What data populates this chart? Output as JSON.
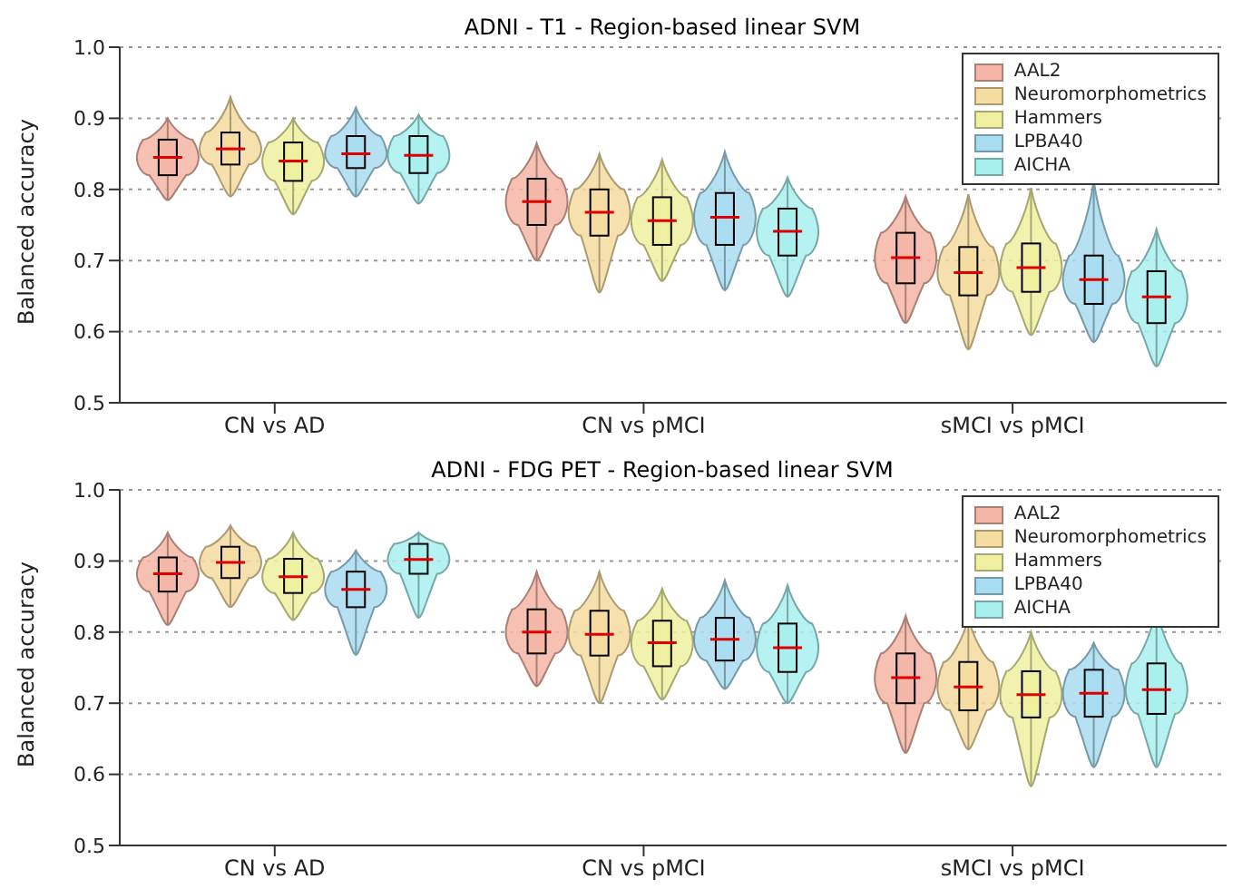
{
  "chart_data": [
    {
      "type": "box",
      "title": "ADNI - T1 - Region-based linear SVM",
      "ylabel": "Balanced accuracy",
      "categories": [
        "CN vs AD",
        "CN vs pMCI",
        "sMCI vs pMCI"
      ],
      "ylim": [
        0.5,
        1.0
      ],
      "yticks": [
        0.5,
        0.6,
        0.7,
        0.8,
        0.9,
        {
          "value": 1,
          "label": "1.0"
        }
      ],
      "grid": "y",
      "legend": "top right",
      "series": [
        {
          "name": "AAL2",
          "color": "#f4b6a6",
          "boxes": [
            {
              "low": 0.785,
              "q1": 0.82,
              "median": 0.845,
              "q3": 0.87,
              "high": 0.9
            },
            {
              "low": 0.7,
              "q1": 0.75,
              "median": 0.783,
              "q3": 0.815,
              "high": 0.865
            },
            {
              "low": 0.612,
              "q1": 0.668,
              "median": 0.704,
              "q3": 0.739,
              "high": 0.79
            }
          ]
        },
        {
          "name": "Neuromorphometrics",
          "color": "#f5dca0",
          "boxes": [
            {
              "low": 0.79,
              "q1": 0.835,
              "median": 0.857,
              "q3": 0.88,
              "high": 0.93
            },
            {
              "low": 0.655,
              "q1": 0.735,
              "median": 0.768,
              "q3": 0.8,
              "high": 0.85
            },
            {
              "low": 0.575,
              "q1": 0.651,
              "median": 0.683,
              "q3": 0.719,
              "high": 0.793
            }
          ]
        },
        {
          "name": "Hammers",
          "color": "#eef0a0",
          "boxes": [
            {
              "low": 0.765,
              "q1": 0.812,
              "median": 0.84,
              "q3": 0.866,
              "high": 0.9
            },
            {
              "low": 0.671,
              "q1": 0.722,
              "median": 0.756,
              "q3": 0.789,
              "high": 0.842
            },
            {
              "low": 0.595,
              "q1": 0.656,
              "median": 0.69,
              "q3": 0.724,
              "high": 0.802
            }
          ]
        },
        {
          "name": "LPBA40",
          "color": "#a8dcf0",
          "boxes": [
            {
              "low": 0.79,
              "q1": 0.83,
              "median": 0.85,
              "q3": 0.875,
              "high": 0.915
            },
            {
              "low": 0.658,
              "q1": 0.722,
              "median": 0.761,
              "q3": 0.795,
              "high": 0.853
            },
            {
              "low": 0.585,
              "q1": 0.639,
              "median": 0.673,
              "q3": 0.707,
              "high": 0.812
            }
          ]
        },
        {
          "name": "AICHA",
          "color": "#a8f0ee",
          "boxes": [
            {
              "low": 0.78,
              "q1": 0.823,
              "median": 0.848,
              "q3": 0.875,
              "high": 0.905
            },
            {
              "low": 0.649,
              "q1": 0.707,
              "median": 0.741,
              "q3": 0.773,
              "high": 0.817
            },
            {
              "low": 0.551,
              "q1": 0.612,
              "median": 0.649,
              "q3": 0.685,
              "high": 0.744
            }
          ]
        }
      ]
    },
    {
      "type": "box",
      "title": "ADNI - FDG PET - Region-based linear SVM",
      "ylabel": "Balanced accuracy",
      "categories": [
        "CN vs AD",
        "CN vs pMCI",
        "sMCI vs pMCI"
      ],
      "ylim": [
        0.5,
        1.0
      ],
      "yticks": [
        0.5,
        0.6,
        0.7,
        0.8,
        0.9,
        {
          "value": 1,
          "label": "1.0"
        }
      ],
      "grid": "y",
      "legend": "top right",
      "series": [
        {
          "name": "AAL2",
          "color": "#f4b6a6",
          "boxes": [
            {
              "low": 0.81,
              "q1": 0.857,
              "median": 0.882,
              "q3": 0.905,
              "high": 0.94
            },
            {
              "low": 0.724,
              "q1": 0.77,
              "median": 0.8,
              "q3": 0.832,
              "high": 0.885
            },
            {
              "low": 0.63,
              "q1": 0.7,
              "median": 0.736,
              "q3": 0.77,
              "high": 0.823
            }
          ]
        },
        {
          "name": "Neuromorphometrics",
          "color": "#f5dca0",
          "boxes": [
            {
              "low": 0.835,
              "q1": 0.876,
              "median": 0.898,
              "q3": 0.92,
              "high": 0.95
            },
            {
              "low": 0.7,
              "q1": 0.767,
              "median": 0.797,
              "q3": 0.83,
              "high": 0.885
            },
            {
              "low": 0.635,
              "q1": 0.69,
              "median": 0.723,
              "q3": 0.758,
              "high": 0.82
            }
          ]
        },
        {
          "name": "Hammers",
          "color": "#eef0a0",
          "boxes": [
            {
              "low": 0.817,
              "q1": 0.855,
              "median": 0.878,
              "q3": 0.903,
              "high": 0.94
            },
            {
              "low": 0.705,
              "q1": 0.752,
              "median": 0.785,
              "q3": 0.816,
              "high": 0.861
            },
            {
              "low": 0.583,
              "q1": 0.68,
              "median": 0.712,
              "q3": 0.745,
              "high": 0.8
            }
          ]
        },
        {
          "name": "LPBA40",
          "color": "#a8dcf0",
          "boxes": [
            {
              "low": 0.768,
              "q1": 0.835,
              "median": 0.86,
              "q3": 0.885,
              "high": 0.915
            },
            {
              "low": 0.72,
              "q1": 0.76,
              "median": 0.79,
              "q3": 0.82,
              "high": 0.873
            },
            {
              "low": 0.61,
              "q1": 0.681,
              "median": 0.714,
              "q3": 0.747,
              "high": 0.785
            }
          ]
        },
        {
          "name": "AICHA",
          "color": "#a8f0ee",
          "boxes": [
            {
              "low": 0.82,
              "q1": 0.882,
              "median": 0.902,
              "q3": 0.924,
              "high": 0.94
            },
            {
              "low": 0.7,
              "q1": 0.744,
              "median": 0.778,
              "q3": 0.812,
              "high": 0.866
            },
            {
              "low": 0.61,
              "q1": 0.685,
              "median": 0.719,
              "q3": 0.756,
              "high": 0.834
            }
          ]
        }
      ]
    }
  ]
}
